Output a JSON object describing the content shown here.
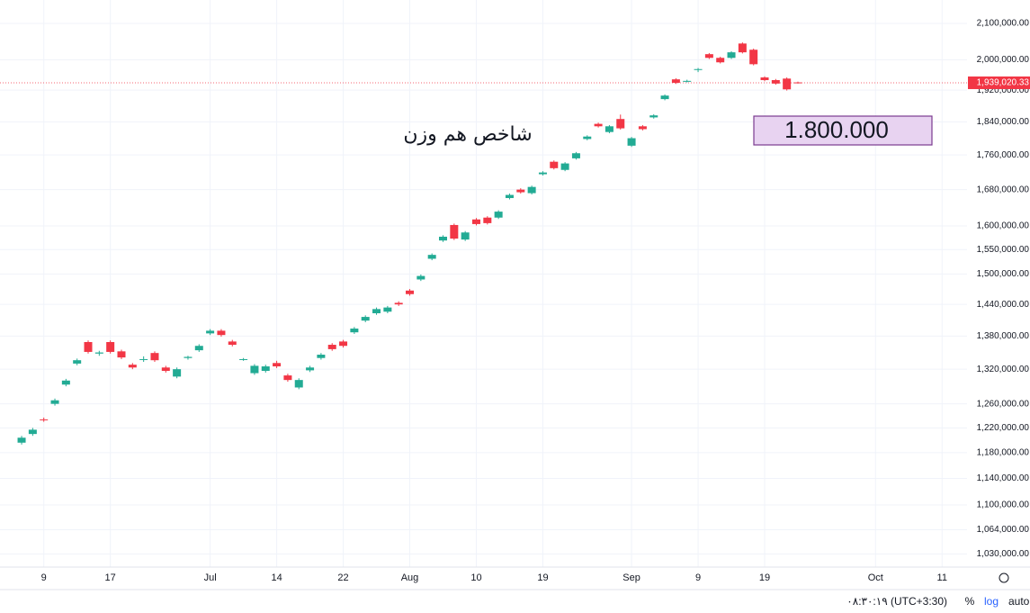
{
  "chart_data": {
    "type": "candlestick",
    "annotations": [
      {
        "text": "شاخص هم وزن"
      },
      {
        "text": "1.800.000"
      }
    ],
    "open": [
      1196000,
      1210000,
      1234000,
      1260000,
      1293000,
      1330000,
      1369000,
      1348000,
      1369000,
      1352000,
      1328000,
      1337000,
      1349000,
      1323000,
      1307000,
      1340000,
      1354000,
      1385000,
      1390000,
      1370000,
      1337000,
      1313000,
      1317000,
      1331000,
      1309000,
      1288000,
      1318000,
      1340000,
      1364000,
      1370000,
      1387000,
      1409000,
      1423000,
      1426000,
      1443000,
      1467000,
      1489000,
      1531000,
      1569000,
      1602000,
      1571000,
      1614000,
      1618000,
      1618000,
      1661000,
      1680000,
      1672000,
      1715000,
      1744000,
      1725000,
      1752000,
      1798000,
      1835000,
      1815000,
      1847000,
      1782000,
      1829000,
      1851000,
      1897000,
      1948000,
      1943000,
      1973000,
      2015000,
      2005000,
      2005000,
      2044000,
      2027000,
      1953000,
      1946000,
      1950000,
      1940000
    ],
    "high": [
      1207000,
      1220000,
      1237000,
      1269000,
      1303000,
      1339000,
      1372000,
      1353000,
      1372000,
      1355000,
      1331000,
      1343000,
      1352000,
      1326000,
      1323000,
      1344000,
      1365000,
      1393000,
      1393000,
      1373000,
      1340000,
      1329000,
      1328000,
      1335000,
      1312000,
      1304000,
      1326000,
      1349000,
      1367000,
      1373000,
      1397000,
      1419000,
      1434000,
      1437000,
      1446000,
      1470000,
      1499000,
      1542000,
      1580000,
      1605000,
      1589000,
      1617000,
      1621000,
      1634000,
      1671000,
      1683000,
      1689000,
      1722000,
      1747000,
      1743000,
      1767000,
      1807000,
      1838000,
      1832000,
      1858000,
      1803000,
      1832000,
      1859000,
      1909000,
      1951000,
      1947000,
      1978000,
      2018000,
      2008000,
      2023000,
      2047000,
      2030000,
      1956000,
      1949000,
      1953000,
      1942000
    ],
    "low": [
      1193000,
      1207000,
      1230000,
      1257000,
      1290000,
      1327000,
      1348000,
      1344000,
      1348000,
      1338000,
      1320000,
      1333000,
      1333000,
      1314000,
      1304000,
      1337000,
      1351000,
      1382000,
      1379000,
      1361000,
      1335000,
      1310000,
      1314000,
      1322000,
      1298000,
      1285000,
      1315000,
      1337000,
      1353000,
      1359000,
      1384000,
      1406000,
      1420000,
      1423000,
      1437000,
      1457000,
      1486000,
      1528000,
      1566000,
      1570000,
      1568000,
      1601000,
      1603000,
      1615000,
      1658000,
      1671000,
      1669000,
      1712000,
      1726000,
      1722000,
      1749000,
      1795000,
      1826000,
      1812000,
      1821000,
      1779000,
      1819000,
      1848000,
      1894000,
      1936000,
      1940000,
      1967000,
      2002000,
      1990000,
      2002000,
      2017000,
      1985000,
      1943000,
      1934000,
      1919000,
      1937000
    ],
    "close": [
      1204000,
      1217000,
      1233000,
      1266000,
      1300000,
      1336000,
      1351000,
      1350000,
      1351000,
      1341000,
      1323000,
      1338000,
      1336000,
      1317000,
      1320000,
      1342000,
      1362000,
      1390000,
      1382000,
      1364000,
      1338000,
      1326000,
      1325000,
      1325000,
      1301000,
      1301000,
      1323000,
      1346000,
      1356000,
      1362000,
      1394000,
      1416000,
      1431000,
      1434000,
      1440000,
      1460000,
      1496000,
      1539000,
      1577000,
      1573000,
      1586000,
      1604000,
      1606000,
      1631000,
      1668000,
      1674000,
      1686000,
      1719000,
      1729000,
      1740000,
      1764000,
      1804000,
      1829000,
      1829000,
      1824000,
      1800000,
      1822000,
      1856000,
      1906000,
      1939000,
      1944000,
      1975000,
      2005000,
      1993000,
      2020000,
      2020000,
      1988000,
      1946000,
      1937000,
      1922000,
      1939020.33
    ],
    "up_color": "#22ab94",
    "down_color": "#f23645",
    "last_price": {
      "value": 1939020.33,
      "label": "1,939,020.33"
    },
    "xlim": [
      -1.95,
      85.25
    ],
    "xticks": [
      {
        "value": 2,
        "label": "9"
      },
      {
        "value": 8,
        "label": "17"
      },
      {
        "value": 17,
        "label": "Jul"
      },
      {
        "value": 23,
        "label": "14"
      },
      {
        "value": 29,
        "label": "22"
      },
      {
        "value": 35,
        "label": "Aug"
      },
      {
        "value": 41,
        "label": "10"
      },
      {
        "value": 47,
        "label": "19"
      },
      {
        "value": 55,
        "label": "Sep"
      },
      {
        "value": 61,
        "label": "9"
      },
      {
        "value": 67,
        "label": "19"
      },
      {
        "value": 77,
        "label": "Oct"
      },
      {
        "value": 83,
        "label": "11"
      }
    ],
    "ylim": [
      1012000,
      2167000
    ],
    "log": true,
    "grid": true,
    "yticks": [
      {
        "value": 2100000,
        "label": "2,100,000.00"
      },
      {
        "value": 2000000,
        "label": "2,000,000.00"
      },
      {
        "value": 1920000,
        "label": "1,920,000.00"
      },
      {
        "value": 1840000,
        "label": "1,840,000.00"
      },
      {
        "value": 1760000,
        "label": "1,760,000.00"
      },
      {
        "value": 1680000,
        "label": "1,680,000.00"
      },
      {
        "value": 1600000,
        "label": "1,600,000.00"
      },
      {
        "value": 1550000,
        "label": "1,550,000.00"
      },
      {
        "value": 1500000,
        "label": "1,500,000.00"
      },
      {
        "value": 1440000,
        "label": "1,440,000.00"
      },
      {
        "value": 1380000,
        "label": "1,380,000.00"
      },
      {
        "value": 1320000,
        "label": "1,320,000.00"
      },
      {
        "value": 1260000,
        "label": "1,260,000.00"
      },
      {
        "value": 1220000,
        "label": "1,220,000.00"
      },
      {
        "value": 1180000,
        "label": "1,180,000.00"
      },
      {
        "value": 1140000,
        "label": "1,140,000.00"
      },
      {
        "value": 1100000,
        "label": "1,100,000.00"
      },
      {
        "value": 1064000,
        "label": "1,064,000.00"
      },
      {
        "value": 1030000,
        "label": "1,030,000.00"
      }
    ]
  },
  "toolbar": {
    "time": "٠٨:٣٠:١٩ (UTC+3:30)",
    "percent": "%",
    "log": "log",
    "auto": "auto"
  }
}
